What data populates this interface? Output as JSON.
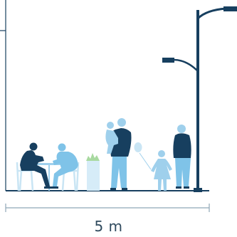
{
  "dimension": {
    "label": "5 m"
  },
  "colors": {
    "navy": "#173f5f",
    "light_blue": "#7fc3e8",
    "mid_blue": "#9fd0ec",
    "pale": "#c9e5f4",
    "planter": "#d6ecf8",
    "plant": "#a8d9a0",
    "line": "#8fa6b6",
    "text": "#2f4a5e"
  }
}
